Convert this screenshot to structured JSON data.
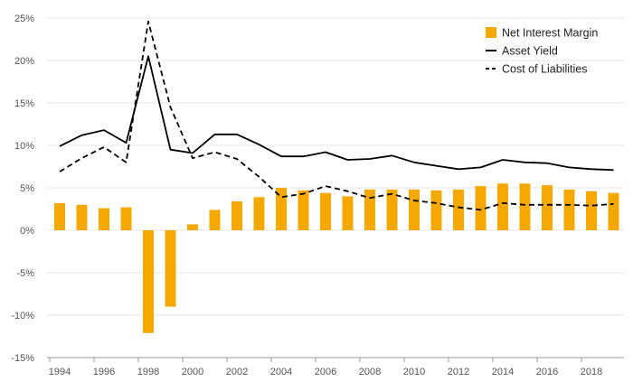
{
  "chart_data": {
    "type": "bar",
    "title": "",
    "xlabel": "",
    "ylabel": "",
    "ylim": [
      -15,
      25
    ],
    "yticks": [
      25,
      20,
      15,
      10,
      5,
      0,
      -5,
      -10,
      -15
    ],
    "ytick_labels": [
      "25%",
      "20%",
      "15%",
      "10%",
      "5%",
      "0%",
      "-5%",
      "-10%",
      "-15%"
    ],
    "categories": [
      "1994",
      "1995",
      "1996",
      "1997",
      "1998",
      "1999",
      "2000",
      "2001",
      "2002",
      "2003",
      "2004",
      "2005",
      "2006",
      "2007",
      "2008",
      "2009",
      "2010",
      "2011",
      "2012",
      "2013",
      "2014",
      "2015",
      "2016",
      "2017",
      "2018",
      "2019"
    ],
    "xtick_labels": [
      "1994",
      "1996",
      "1998",
      "2000",
      "2002",
      "2004",
      "2006",
      "2008",
      "2010",
      "2012",
      "2014",
      "2016",
      "2018"
    ],
    "grid": true,
    "legend_position": "top-right",
    "series": [
      {
        "name": "Net Interest Margin",
        "type": "bar",
        "color": "#F5A800",
        "values": [
          3.2,
          3.0,
          2.6,
          2.7,
          -12.1,
          -9.0,
          0.7,
          2.4,
          3.4,
          3.9,
          5.0,
          4.7,
          4.4,
          4.0,
          4.8,
          4.8,
          4.8,
          4.7,
          4.8,
          5.2,
          5.5,
          5.5,
          5.3,
          4.8,
          4.6,
          4.4
        ]
      },
      {
        "name": "Asset Yield",
        "type": "line",
        "style": "solid",
        "color": "#000000",
        "values": [
          9.9,
          11.2,
          11.8,
          10.3,
          20.5,
          9.5,
          9.1,
          11.3,
          11.3,
          10.1,
          8.7,
          8.7,
          9.2,
          8.3,
          8.4,
          8.8,
          8.0,
          7.6,
          7.2,
          7.4,
          8.3,
          8.0,
          7.9,
          7.4,
          7.2,
          7.1
        ]
      },
      {
        "name": "Cost of Liabilities",
        "type": "line",
        "style": "dashed",
        "color": "#000000",
        "values": [
          6.9,
          8.5,
          9.8,
          8.0,
          24.6,
          14.5,
          8.5,
          9.2,
          8.4,
          6.3,
          3.9,
          4.3,
          5.2,
          4.6,
          3.8,
          4.3,
          3.5,
          3.2,
          2.7,
          2.4,
          3.2,
          3.0,
          3.0,
          3.0,
          2.9,
          3.1
        ]
      }
    ]
  }
}
